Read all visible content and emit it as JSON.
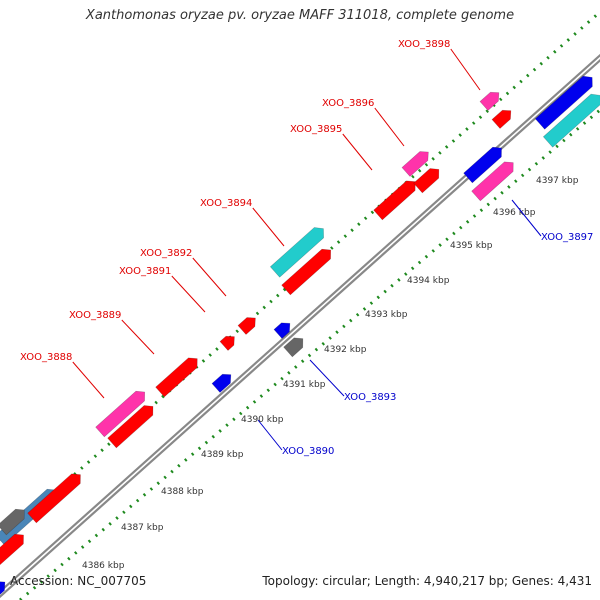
{
  "title": "Xanthomonas oryzae pv. oryzae MAFF 311018, complete genome",
  "footer": {
    "accession": "Accession: NC_007705",
    "topology": "Topology: circular; Length: 4,940,217 bp; Genes: 4,431"
  },
  "colors": {
    "backbone": "#888888",
    "tick": "#1f8a1f",
    "plus_label": "#e00000",
    "minus_label": "#0000cc",
    "red": "#ff0000",
    "pink": "#ff33aa",
    "cyan": "#22cccc",
    "blue": "#0000ee",
    "gray": "#666666",
    "steelblue": "#4a86b8"
  },
  "scale_labels": [
    "4386 kbp",
    "4387 kbp",
    "4388 kbp",
    "4389 kbp",
    "4390 kbp",
    "4391 kbp",
    "4392 kbp",
    "4393 kbp",
    "4394 kbp",
    "4395 kbp",
    "4396 kbp",
    "4397 kbp"
  ],
  "plus_gene_labels": [
    "XOO_3888",
    "XOO_3889",
    "XOO_3891",
    "XOO_3892",
    "XOO_3894",
    "XOO_3895",
    "XOO_3896",
    "XOO_3898"
  ],
  "minus_gene_labels": [
    "XOO_3890",
    "XOO_3893",
    "XOO_3897"
  ]
}
